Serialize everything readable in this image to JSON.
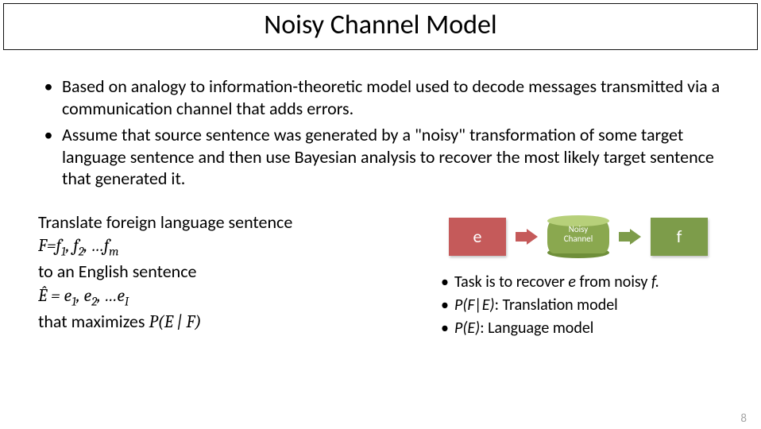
{
  "title": "Noisy Channel Model",
  "bullets": [
    "Based on analogy to information-theoretic model used to decode messages transmitted via a communication channel that adds errors.",
    "Assume that source sentence was generated by a \"noisy\" transformation of some target language sentence and then use Bayesian analysis to recover the most likely target sentence that generated it."
  ],
  "left": {
    "l1": "Translate foreign language sentence",
    "l2_pre": "F=f",
    "l2_s1": "1",
    "l2_c1": ", f",
    "l2_s2": "2",
    "l2_c2": ", …f",
    "l2_s3": "m",
    "l3": "to an English sentence",
    "l4_pre": "Ê = e",
    "l4_s1": "1",
    "l4_c1": ", e",
    "l4_s2": "2",
    "l4_c2": ", …e",
    "l4_s3": "I",
    "l5_a": "that maximizes ",
    "l5_b": "P(E | F)"
  },
  "diagram": {
    "e_label": "e",
    "f_label": "f",
    "channel_l1": "Noisy",
    "channel_l2": "Channel",
    "colors": {
      "e_box": "#c55a5a",
      "f_box": "#7d9c4a",
      "arrow1": "#c55a5a",
      "arrow2": "#7d9c4a",
      "cyl_body": "#8aa84f",
      "cyl_cap": "#b7d07a",
      "cyl_bot": "#6f8f3a"
    }
  },
  "sub_bullets": {
    "b1_a": "Task is to recover ",
    "b1_e": "e",
    "b1_b": " from noisy ",
    "b1_f": "f.",
    "b2_a": "P(F|E)",
    "b2_b": ": Translation model",
    "b3_a": "P(E)",
    "b3_b": ": Language model"
  },
  "page_number": "8"
}
